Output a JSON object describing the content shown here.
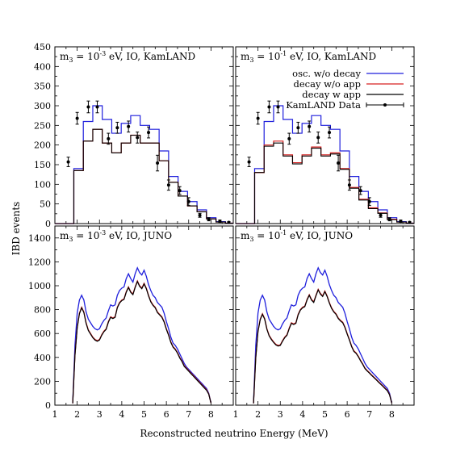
{
  "chart_data": {
    "type": "line",
    "ylabel": "IBD events",
    "xlabel": "Reconstructed neutrino Energy (MeV)",
    "legend": {
      "placement": "top-right",
      "entries": [
        {
          "label": "osc. w/o decay",
          "color": "#1f1fdc",
          "style": "line"
        },
        {
          "label": "decay w/o app",
          "color": "#d62020",
          "style": "line"
        },
        {
          "label": "decay w app",
          "color": "#000000",
          "style": "line"
        },
        {
          "label": "KamLAND Data",
          "color": "#000000",
          "style": "errorbar"
        }
      ]
    },
    "panels": [
      {
        "title": "m3 = 10-3 eV, IO, KamLAND",
        "title_parts": {
          "prefix": "m",
          "sub": "3",
          "mid": " = 10",
          "sup": "-3",
          "suffix": " eV, IO, KamLAND"
        },
        "xlim": [
          1,
          9
        ],
        "ylim": [
          0,
          450
        ],
        "xticks": [
          "1",
          "2",
          "3",
          "4",
          "5",
          "6",
          "7",
          "8"
        ],
        "yticks": [
          "0",
          "50",
          "100",
          "150",
          "200",
          "250",
          "300",
          "350",
          "400",
          "450"
        ],
        "histogram": {
          "bin_edges": [
            1.0,
            1.425,
            1.85,
            2.275,
            2.7,
            3.125,
            3.55,
            3.975,
            4.4,
            4.825,
            5.25,
            5.675,
            6.1,
            6.525,
            6.95,
            7.375,
            7.8,
            8.225,
            8.65,
            9.0
          ],
          "blue": [
            0,
            0,
            140,
            260,
            300,
            265,
            230,
            255,
            275,
            250,
            240,
            185,
            120,
            82,
            56,
            35,
            15,
            5,
            1
          ],
          "red": [
            0,
            0,
            135,
            210,
            240,
            205,
            180,
            205,
            225,
            205,
            205,
            160,
            105,
            70,
            45,
            30,
            12,
            4,
            1
          ],
          "black": [
            0,
            0,
            135,
            210,
            240,
            205,
            180,
            205,
            225,
            205,
            205,
            160,
            105,
            70,
            45,
            30,
            12,
            4,
            1
          ]
        },
        "data_points": [
          {
            "x": 1.6,
            "y": 157,
            "err": 12
          },
          {
            "x": 2.0,
            "y": 268,
            "err": 15
          },
          {
            "x": 2.5,
            "y": 297,
            "err": 15
          },
          {
            "x": 2.9,
            "y": 297,
            "err": 15
          },
          {
            "x": 3.4,
            "y": 216,
            "err": 14
          },
          {
            "x": 3.8,
            "y": 244,
            "err": 14
          },
          {
            "x": 4.3,
            "y": 247,
            "err": 14
          },
          {
            "x": 4.7,
            "y": 219,
            "err": 14
          },
          {
            "x": 5.2,
            "y": 232,
            "err": 14
          },
          {
            "x": 5.6,
            "y": 154,
            "err": 20
          },
          {
            "x": 6.1,
            "y": 98,
            "err": 13
          },
          {
            "x": 6.6,
            "y": 84,
            "err": 10
          },
          {
            "x": 7.0,
            "y": 56,
            "err": 10
          },
          {
            "x": 7.5,
            "y": 21,
            "err": 5
          },
          {
            "x": 7.9,
            "y": 11,
            "err": 4
          },
          {
            "x": 8.4,
            "y": 6,
            "err": 3
          },
          {
            "x": 8.8,
            "y": 3,
            "err": 2
          }
        ],
        "show_legend": false
      },
      {
        "title": "m3 = 10-1 eV, IO, KamLAND",
        "title_parts": {
          "prefix": "m",
          "sub": "3",
          "mid": " = 10",
          "sup": "-1",
          "suffix": " eV, IO, KamLAND"
        },
        "xlim": [
          1,
          9
        ],
        "ylim": [
          0,
          450
        ],
        "xticks": [
          "1",
          "2",
          "3",
          "4",
          "5",
          "6",
          "7",
          "8"
        ],
        "yticks": [],
        "histogram": {
          "bin_edges": [
            1.0,
            1.425,
            1.85,
            2.275,
            2.7,
            3.125,
            3.55,
            3.975,
            4.4,
            4.825,
            5.25,
            5.675,
            6.1,
            6.525,
            6.95,
            7.375,
            7.8,
            8.225,
            8.65,
            9.0
          ],
          "blue": [
            0,
            0,
            140,
            260,
            300,
            265,
            230,
            255,
            275,
            250,
            240,
            185,
            120,
            82,
            56,
            35,
            15,
            5,
            1
          ],
          "red": [
            0,
            0,
            130,
            200,
            210,
            175,
            155,
            175,
            195,
            175,
            180,
            140,
            92,
            62,
            40,
            27,
            11,
            4,
            1
          ],
          "black": [
            0,
            0,
            130,
            197,
            205,
            172,
            152,
            172,
            192,
            172,
            177,
            138,
            90,
            60,
            38,
            26,
            10,
            4,
            1
          ]
        },
        "data_points": [
          {
            "x": 1.6,
            "y": 157,
            "err": 12
          },
          {
            "x": 2.0,
            "y": 268,
            "err": 15
          },
          {
            "x": 2.5,
            "y": 297,
            "err": 15
          },
          {
            "x": 2.9,
            "y": 297,
            "err": 15
          },
          {
            "x": 3.4,
            "y": 216,
            "err": 14
          },
          {
            "x": 3.8,
            "y": 244,
            "err": 14
          },
          {
            "x": 4.3,
            "y": 247,
            "err": 14
          },
          {
            "x": 4.7,
            "y": 219,
            "err": 14
          },
          {
            "x": 5.2,
            "y": 232,
            "err": 14
          },
          {
            "x": 5.6,
            "y": 154,
            "err": 20
          },
          {
            "x": 6.1,
            "y": 98,
            "err": 13
          },
          {
            "x": 6.6,
            "y": 84,
            "err": 10
          },
          {
            "x": 7.0,
            "y": 56,
            "err": 10
          },
          {
            "x": 7.5,
            "y": 21,
            "err": 5
          },
          {
            "x": 7.9,
            "y": 11,
            "err": 4
          },
          {
            "x": 8.4,
            "y": 6,
            "err": 3
          },
          {
            "x": 8.8,
            "y": 3,
            "err": 2
          }
        ],
        "show_legend": true
      },
      {
        "title": "m3 = 10-3 eV, IO, JUNO",
        "title_parts": {
          "prefix": "m",
          "sub": "3",
          "mid": " = 10",
          "sup": "-3",
          "suffix": " eV, IO, JUNO"
        },
        "xlim": [
          1,
          9
        ],
        "ylim": [
          0,
          1500
        ],
        "xticks": [
          "1",
          "2",
          "3",
          "4",
          "5",
          "6",
          "7",
          "8"
        ],
        "yticks": [
          "0",
          "200",
          "400",
          "600",
          "800",
          "1000",
          "1200",
          "1400"
        ],
        "curves": {
          "x": [
            1.8,
            1.9,
            2.0,
            2.1,
            2.2,
            2.3,
            2.4,
            2.5,
            2.6,
            2.7,
            2.8,
            2.9,
            3.0,
            3.1,
            3.2,
            3.3,
            3.4,
            3.5,
            3.6,
            3.7,
            3.8,
            3.9,
            4.0,
            4.1,
            4.2,
            4.3,
            4.4,
            4.5,
            4.6,
            4.7,
            4.8,
            4.9,
            5.0,
            5.1,
            5.2,
            5.3,
            5.4,
            5.5,
            5.6,
            5.7,
            5.8,
            5.9,
            6.0,
            6.1,
            6.2,
            6.3,
            6.4,
            6.5,
            6.6,
            6.7,
            6.8,
            6.9,
            7.0,
            7.1,
            7.2,
            7.3,
            7.4,
            7.5,
            7.6,
            7.7,
            7.8,
            7.9,
            8.0
          ],
          "blue": [
            20,
            500,
            770,
            880,
            920,
            880,
            780,
            720,
            690,
            660,
            640,
            630,
            640,
            680,
            710,
            730,
            790,
            840,
            830,
            840,
            920,
            960,
            980,
            990,
            1060,
            1100,
            1060,
            1030,
            1100,
            1150,
            1110,
            1090,
            1130,
            1080,
            1010,
            960,
            920,
            900,
            860,
            840,
            820,
            770,
            700,
            640,
            570,
            520,
            500,
            470,
            430,
            390,
            350,
            320,
            300,
            280,
            260,
            240,
            220,
            200,
            180,
            160,
            140,
            100,
            20
          ],
          "red": [
            15,
            420,
            650,
            770,
            820,
            780,
            690,
            630,
            600,
            570,
            550,
            540,
            550,
            590,
            620,
            640,
            700,
            740,
            730,
            740,
            820,
            860,
            880,
            890,
            950,
            990,
            950,
            930,
            990,
            1040,
            1000,
            980,
            1020,
            980,
            920,
            870,
            840,
            820,
            780,
            760,
            740,
            700,
            640,
            590,
            530,
            490,
            470,
            440,
            400,
            370,
            330,
            310,
            290,
            270,
            250,
            230,
            210,
            190,
            170,
            150,
            130,
            95,
            18
          ],
          "black": [
            15,
            415,
            645,
            765,
            815,
            775,
            685,
            625,
            595,
            565,
            545,
            535,
            545,
            585,
            615,
            635,
            695,
            735,
            725,
            735,
            815,
            855,
            875,
            885,
            945,
            985,
            945,
            925,
            985,
            1035,
            995,
            975,
            1015,
            975,
            915,
            865,
            835,
            815,
            775,
            755,
            735,
            695,
            635,
            585,
            525,
            485,
            465,
            435,
            395,
            365,
            325,
            305,
            285,
            265,
            245,
            225,
            205,
            185,
            165,
            145,
            125,
            92,
            18
          ]
        },
        "show_legend": false
      },
      {
        "title": "m3 = 10-1 eV, IO, JUNO",
        "title_parts": {
          "prefix": "m",
          "sub": "3",
          "mid": " = 10",
          "sup": "-1",
          "suffix": " eV, IO, JUNO"
        },
        "xlim": [
          1,
          9
        ],
        "ylim": [
          0,
          1500
        ],
        "xticks": [
          "1",
          "2",
          "3",
          "4",
          "5",
          "6",
          "7",
          "8"
        ],
        "yticks": [],
        "curves": {
          "x": [
            1.8,
            1.9,
            2.0,
            2.1,
            2.2,
            2.3,
            2.4,
            2.5,
            2.6,
            2.7,
            2.8,
            2.9,
            3.0,
            3.1,
            3.2,
            3.3,
            3.4,
            3.5,
            3.6,
            3.7,
            3.8,
            3.9,
            4.0,
            4.1,
            4.2,
            4.3,
            4.4,
            4.5,
            4.6,
            4.7,
            4.8,
            4.9,
            5.0,
            5.1,
            5.2,
            5.3,
            5.4,
            5.5,
            5.6,
            5.7,
            5.8,
            5.9,
            6.0,
            6.1,
            6.2,
            6.3,
            6.4,
            6.5,
            6.6,
            6.7,
            6.8,
            6.9,
            7.0,
            7.1,
            7.2,
            7.3,
            7.4,
            7.5,
            7.6,
            7.7,
            7.8,
            7.9,
            8.0
          ],
          "blue": [
            20,
            500,
            770,
            880,
            920,
            880,
            780,
            720,
            690,
            660,
            640,
            630,
            640,
            680,
            710,
            730,
            790,
            840,
            830,
            840,
            920,
            960,
            980,
            990,
            1060,
            1100,
            1060,
            1030,
            1100,
            1150,
            1110,
            1090,
            1130,
            1080,
            1010,
            960,
            920,
            900,
            860,
            840,
            820,
            770,
            700,
            640,
            570,
            520,
            500,
            470,
            430,
            390,
            350,
            320,
            300,
            280,
            260,
            240,
            220,
            200,
            180,
            160,
            140,
            100,
            20
          ],
          "red": [
            15,
            400,
            620,
            720,
            765,
            725,
            640,
            585,
            555,
            530,
            510,
            500,
            505,
            540,
            570,
            590,
            645,
            690,
            680,
            690,
            760,
            800,
            820,
            830,
            885,
            925,
            885,
            865,
            920,
            970,
            935,
            915,
            955,
            915,
            860,
            815,
            785,
            765,
            730,
            710,
            695,
            655,
            600,
            550,
            495,
            455,
            438,
            410,
            375,
            345,
            310,
            290,
            272,
            253,
            235,
            217,
            198,
            180,
            162,
            143,
            125,
            90,
            17
          ],
          "black": [
            15,
            395,
            615,
            715,
            760,
            720,
            635,
            580,
            550,
            525,
            505,
            495,
            500,
            535,
            565,
            585,
            640,
            685,
            675,
            685,
            755,
            795,
            815,
            825,
            880,
            920,
            880,
            860,
            915,
            965,
            930,
            910,
            950,
            910,
            855,
            810,
            780,
            760,
            725,
            705,
            690,
            650,
            595,
            545,
            490,
            450,
            434,
            406,
            371,
            341,
            306,
            286,
            268,
            249,
            231,
            213,
            194,
            176,
            158,
            139,
            121,
            87,
            17
          ]
        },
        "show_legend": false
      }
    ]
  }
}
